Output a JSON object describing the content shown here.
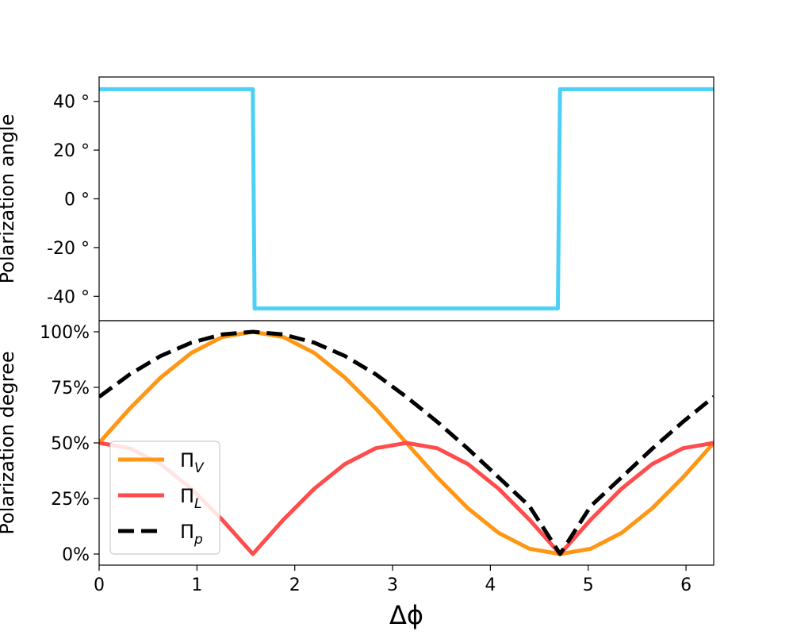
{
  "chart_data": [
    {
      "type": "line",
      "panel": "top",
      "ylabel": "Polarization angle",
      "xlim": [
        0,
        6.283
      ],
      "ylim": [
        -50,
        50
      ],
      "yticks": [
        -40,
        -20,
        0,
        20,
        40
      ],
      "ytick_labels": [
        "-40 °",
        "-20 °",
        "0 °",
        "20 °",
        "40 °"
      ],
      "series": [
        {
          "color": "#4dd0f5",
          "style": "solid",
          "x": [
            0,
            1.571,
            1.59,
            4.69,
            4.712,
            6.283
          ],
          "y": [
            45,
            45,
            -45,
            -45,
            45,
            45
          ]
        }
      ]
    },
    {
      "type": "line",
      "panel": "bottom",
      "ylabel": "Polarization degree",
      "xlabel": "Δϕ",
      "xlim": [
        0,
        6.283
      ],
      "ylim": [
        -5,
        105
      ],
      "xticks": [
        0,
        1,
        2,
        3,
        4,
        5,
        6
      ],
      "xtick_labels": [
        "0",
        "1",
        "2",
        "3",
        "4",
        "5",
        "6"
      ],
      "yticks": [
        0,
        25,
        50,
        75,
        100
      ],
      "ytick_labels": [
        "0%",
        "25%",
        "50%",
        "75%",
        "100%"
      ],
      "legend": {
        "position": "lower-left",
        "items": [
          {
            "base": "Π",
            "sub": "V",
            "color": "#ff9614",
            "style": "solid"
          },
          {
            "base": "Π",
            "sub": "L",
            "color": "#ff4c4c",
            "style": "solid"
          },
          {
            "base": "Π",
            "sub": "p",
            "color": "#000000",
            "style": "dashed"
          }
        ]
      },
      "series": [
        {
          "name": "Π_V",
          "color": "#ff9614",
          "style": "solid",
          "x": [
            0,
            0.3142,
            0.6283,
            0.9425,
            1.2566,
            1.5708,
            1.885,
            2.1991,
            2.5133,
            2.8274,
            3.1416,
            3.4558,
            3.7699,
            4.0841,
            4.3982,
            4.7124,
            5.0265,
            5.3407,
            5.6549,
            5.969,
            6.2832
          ],
          "y": [
            50,
            65.5,
            79.4,
            90.5,
            97.6,
            100,
            97.6,
            90.5,
            79.4,
            65.5,
            50,
            34.5,
            20.6,
            9.5,
            2.4,
            0,
            2.4,
            9.5,
            20.6,
            34.5,
            50
          ]
        },
        {
          "name": "Π_L",
          "color": "#ff4c4c",
          "style": "solid",
          "x": [
            0,
            0.3142,
            0.6283,
            0.9425,
            1.2566,
            1.5708,
            1.885,
            2.1991,
            2.5133,
            2.8274,
            3.1416,
            3.4558,
            3.7699,
            4.0841,
            4.3982,
            4.7124,
            5.0265,
            5.3407,
            5.6549,
            5.969,
            6.2832
          ],
          "y": [
            50,
            47.6,
            40.5,
            29.4,
            15.5,
            0,
            15.5,
            29.4,
            40.5,
            47.6,
            50,
            47.6,
            40.5,
            29.4,
            15.5,
            0,
            15.5,
            29.4,
            40.5,
            47.6,
            50
          ]
        },
        {
          "name": "Π_p",
          "color": "#000000",
          "style": "dashed",
          "x": [
            0,
            0.3142,
            0.6283,
            0.9425,
            1.2566,
            1.5708,
            1.885,
            2.1991,
            2.5133,
            2.8274,
            3.1416,
            3.4558,
            3.7699,
            4.0841,
            4.3982,
            4.7124,
            5.0265,
            5.3407,
            5.6549,
            5.969,
            6.2832
          ],
          "y": [
            70.7,
            80.9,
            89.1,
            95.1,
            98.8,
            100,
            98.8,
            95.1,
            89.1,
            80.9,
            70.7,
            59.5,
            47.4,
            34.5,
            21.6,
            0,
            21.6,
            34.5,
            47.4,
            59.5,
            70.7
          ]
        }
      ]
    }
  ]
}
